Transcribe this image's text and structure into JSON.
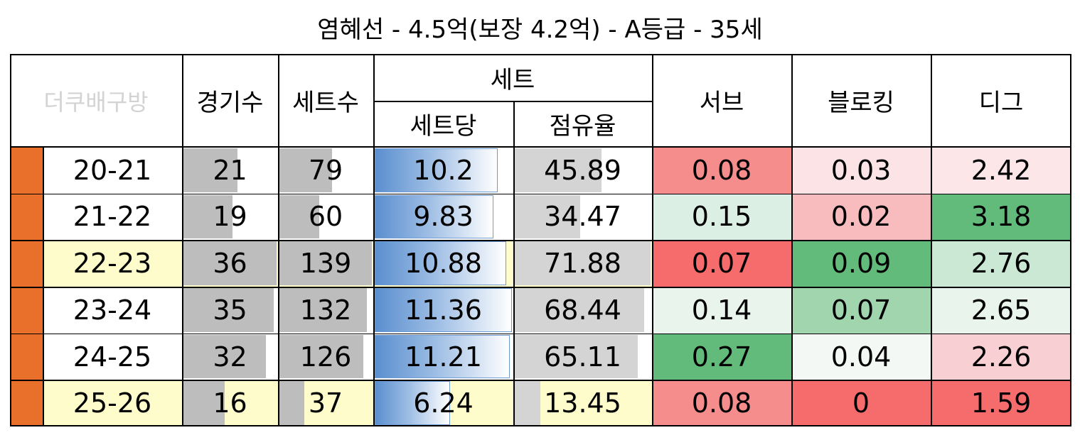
{
  "title": "염혜선 - 4.5억(보장 4.2억) - A등급 - 35세",
  "header": {
    "brand": "더쿠배구방",
    "games": "경기수",
    "sets": "세트수",
    "set_group": "세트",
    "per_set": "세트당",
    "share": "점유율",
    "serve": "서브",
    "block": "블로킹",
    "dig": "디그"
  },
  "colors": {
    "marker": "#e8702a",
    "highlight_row": "#fffccc",
    "bar_gray": "#bdbdbd",
    "bar_light_gray": "#d4d4d4",
    "bar_blue": "#5b8fcf"
  },
  "rows": [
    {
      "season": "20-21",
      "highlight": false,
      "games": "21",
      "sets": "79",
      "per_set": "10.2",
      "share": "45.89",
      "serve": "0.08",
      "block": "0.03",
      "dig": "2.42",
      "serve_bg": "#f58d8d",
      "block_bg": "#fce4e6",
      "dig_bg": "#fce6e8"
    },
    {
      "season": "21-22",
      "highlight": false,
      "games": "19",
      "sets": "60",
      "per_set": "9.83",
      "share": "34.47",
      "serve": "0.15",
      "block": "0.02",
      "dig": "3.18",
      "serve_bg": "#dcefe4",
      "block_bg": "#f8bcbf",
      "dig_bg": "#62bb7a"
    },
    {
      "season": "22-23",
      "highlight": true,
      "games": "36",
      "sets": "139",
      "per_set": "10.88",
      "share": "71.88",
      "serve": "0.07",
      "block": "0.09",
      "dig": "2.76",
      "serve_bg": "#f66c6d",
      "block_bg": "#62bb7a",
      "dig_bg": "#cbe8d4"
    },
    {
      "season": "23-24",
      "highlight": false,
      "games": "35",
      "sets": "132",
      "per_set": "11.36",
      "share": "68.44",
      "serve": "0.14",
      "block": "0.07",
      "dig": "2.65",
      "serve_bg": "#e8f4ec",
      "block_bg": "#a0d5ae",
      "dig_bg": "#e8f4ec"
    },
    {
      "season": "24-25",
      "highlight": false,
      "games": "32",
      "sets": "126",
      "per_set": "11.21",
      "share": "65.11",
      "serve": "0.27",
      "block": "0.04",
      "dig": "2.26",
      "serve_bg": "#62bb7a",
      "block_bg": "#f3f8f4",
      "dig_bg": "#f8cfd2"
    },
    {
      "season": "25-26",
      "highlight": true,
      "games": "16",
      "sets": "37",
      "per_set": "6.24",
      "share": "13.45",
      "serve": "0.08",
      "block": "0",
      "dig": "1.59",
      "serve_bg": "#f58d8d",
      "block_bg": "#f66c6d",
      "dig_bg": "#f66c6d"
    }
  ],
  "scales": {
    "games_max": 36,
    "sets_max": 139,
    "per_set_max": 11.36,
    "share_max": 71.88
  }
}
